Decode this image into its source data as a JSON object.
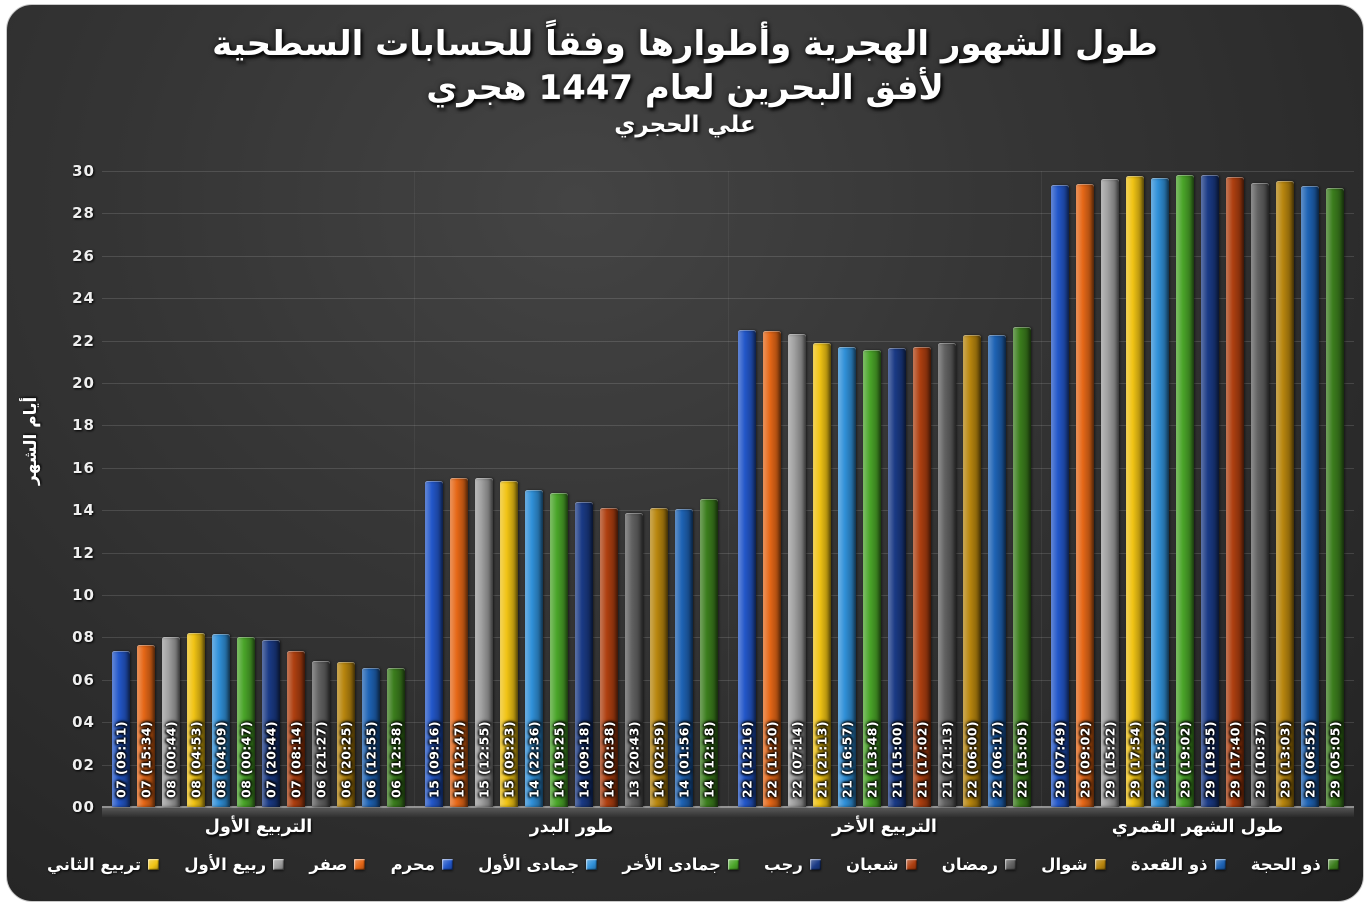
{
  "title": {
    "line1": "طول الشهور الهجرية وأطواره وفقاً للحسابات السطحية",
    "line1_exact": "طول الشهور الهجرية وأطوارها وفقاً للحسابات السطحية",
    "line2": "لأفق البحرين لعام 1447 هجري",
    "line3": "علي الحجري"
  },
  "y_axis": {
    "title": "أيام الشهر",
    "min": 0,
    "max": 30,
    "step": 2,
    "tick_labels": [
      "00",
      "02",
      "04",
      "06",
      "08",
      "10",
      "12",
      "14",
      "16",
      "18",
      "20",
      "22",
      "24",
      "26",
      "28",
      "30"
    ]
  },
  "legend": {
    "display_order": [
      "تربيع الثاني",
      "ربيع الأول",
      "صفر",
      "محرم",
      "جمادى الأول",
      "جمادى الأخر",
      "رجب",
      "شعبان",
      "رمضان",
      "شوال",
      "ذو القعدة",
      "ذو الحجة"
    ]
  },
  "chart_data": {
    "type": "bar",
    "title": "طول الشهور الهجرية وأطوارها وفقاً للحسابات السطحية لأفق البحرين لعام 1447 هجري",
    "subtitle": "علي الحجري",
    "ylabel": "أيام الشهر",
    "ylim": [
      0,
      30
    ],
    "grid": true,
    "legend_position": "bottom",
    "categories": [
      "التربيع الأول",
      "طور البدر",
      "التربيع الأخر",
      "طول الشهر القمري"
    ],
    "series": [
      {
        "name": "محرم",
        "color": "#2357c9",
        "values": [
          7.38,
          15.39,
          22.51,
          29.33
        ],
        "labels": [
          "07 (09:11)",
          "15 (09:16)",
          "22 (12:16)",
          "29 (07:49)"
        ]
      },
      {
        "name": "صفر",
        "color": "#e56717",
        "values": [
          7.65,
          15.53,
          22.47,
          29.38
        ],
        "labels": [
          "07 (15:34)",
          "15 (12:47)",
          "22 (11:20)",
          "29 (09:02)"
        ]
      },
      {
        "name": "ربيع الأول",
        "color": "#9e9e9e",
        "values": [
          8.03,
          15.54,
          22.3,
          29.64
        ],
        "labels": [
          "08 (00:44)",
          "15 (12:55)",
          "22 (07:14)",
          "29 (15:22)"
        ]
      },
      {
        "name": "تربيع الثاني",
        "color": "#f0c314",
        "values": [
          8.2,
          15.39,
          21.88,
          29.75
        ],
        "labels": [
          "08 (04:53)",
          "15 (09:23)",
          "21 (21:13)",
          "29 (17:54)"
        ]
      },
      {
        "name": "جمادى الأول",
        "color": "#3090d8",
        "values": [
          8.17,
          14.94,
          21.71,
          29.65
        ],
        "labels": [
          "08 (04:09)",
          "14 (22:36)",
          "21 (16:57)",
          "29 (15:30)"
        ]
      },
      {
        "name": "جمادى الأخر",
        "color": "#4aa529",
        "values": [
          8.03,
          14.81,
          21.58,
          29.79
        ],
        "labels": [
          "08 (00:47)",
          "14 (19:25)",
          "21 (13:48)",
          "29 (19:02)"
        ]
      },
      {
        "name": "رجب",
        "color": "#1a3a85",
        "values": [
          7.86,
          14.39,
          21.63,
          29.83
        ],
        "labels": [
          "07 (20:44)",
          "14 (09:18)",
          "21 (15:00)",
          "29 (19:55)"
        ]
      },
      {
        "name": "شعبان",
        "color": "#ae3f10",
        "values": [
          7.34,
          14.11,
          21.71,
          29.74
        ],
        "labels": [
          "07 (08:14)",
          "14 (02:38)",
          "21 (17:02)",
          "29 (17:40)"
        ]
      },
      {
        "name": "رمضان",
        "color": "#616161",
        "values": [
          6.89,
          13.86,
          21.88,
          29.44
        ],
        "labels": [
          "06 (21:27)",
          "13 (20:43)",
          "21 (21:13)",
          "29 (10:37)"
        ]
      },
      {
        "name": "شوال",
        "color": "#b8860e",
        "values": [
          6.85,
          14.12,
          22.25,
          29.54
        ],
        "labels": [
          "06 (20:25)",
          "14 (02:59)",
          "22 (06:00)",
          "29 (13:03)"
        ]
      },
      {
        "name": "ذو القعدة",
        "color": "#1e63b4",
        "values": [
          6.54,
          14.08,
          22.26,
          29.29
        ],
        "labels": [
          "06 (12:55)",
          "14 (01:56)",
          "22 (06:17)",
          "29 (06:52)"
        ]
      },
      {
        "name": "ذو الحجة",
        "color": "#3b7d1d",
        "values": [
          6.54,
          14.51,
          22.63,
          29.21
        ],
        "labels": [
          "06 (12:58)",
          "14 (12:18)",
          "22 (15:05)",
          "29 (05:05)"
        ]
      }
    ]
  }
}
